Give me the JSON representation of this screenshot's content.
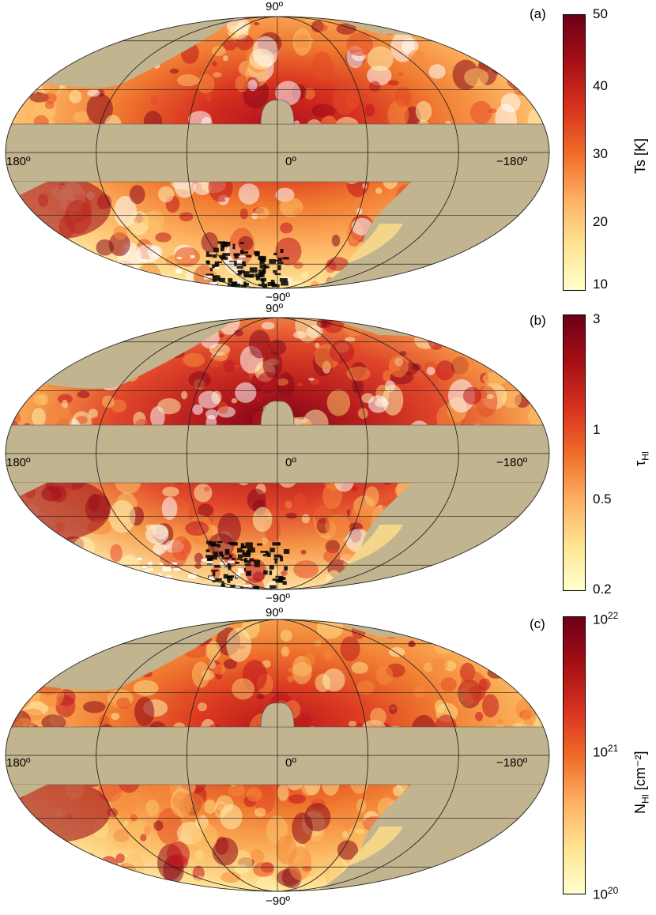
{
  "panels": [
    {
      "id": "a",
      "tag": "(a)",
      "top_label": "90º",
      "bottom_label": "−90º",
      "left_label": "180º",
      "center_label": "0º",
      "right_label": "−180º",
      "colorbar": {
        "title_main": "Ts [K]",
        "title_sub": "",
        "title_sup_suffix": "",
        "ticks": [
          "50",
          "40",
          "30",
          "20",
          "10"
        ],
        "colors": [
          "#6b0016",
          "#a50f15",
          "#d7301f",
          "#ef6a28",
          "#fdae61",
          "#fee391",
          "#ffffcc"
        ]
      }
    },
    {
      "id": "b",
      "tag": "(b)",
      "top_label": "90º",
      "bottom_label": "−90º",
      "left_label": "180º",
      "center_label": "0º",
      "right_label": "−180º",
      "colorbar": {
        "title_main": "τ",
        "title_sub": "HI",
        "title_sup_suffix": "",
        "ticks": [
          "3",
          "1",
          "0.5",
          "0.2"
        ],
        "colors": [
          "#6b0016",
          "#a50f15",
          "#d7301f",
          "#ef6a28",
          "#fdae61",
          "#fee391",
          "#ffffcc"
        ]
      }
    },
    {
      "id": "c",
      "tag": "(c)",
      "top_label": "90º",
      "bottom_label": "−90º",
      "left_label": "180º",
      "center_label": "0º",
      "right_label": "−180º",
      "colorbar": {
        "title_main": "N",
        "title_sub": "HI",
        "title_sup_suffix": " [cm⁻²]",
        "ticks_html": [
          {
            "base": "10",
            "exp": "22"
          },
          {
            "base": "10",
            "exp": "21"
          },
          {
            "base": "10",
            "exp": "20"
          }
        ],
        "colors": [
          "#6b0016",
          "#a50f15",
          "#d7301f",
          "#ef6a28",
          "#fdae61",
          "#fee391",
          "#ffffcc"
        ]
      }
    }
  ],
  "map_colors": {
    "mask": "#c2b48f",
    "outline": "#555555",
    "grid": "#222222",
    "black_patch": "#000000"
  }
}
